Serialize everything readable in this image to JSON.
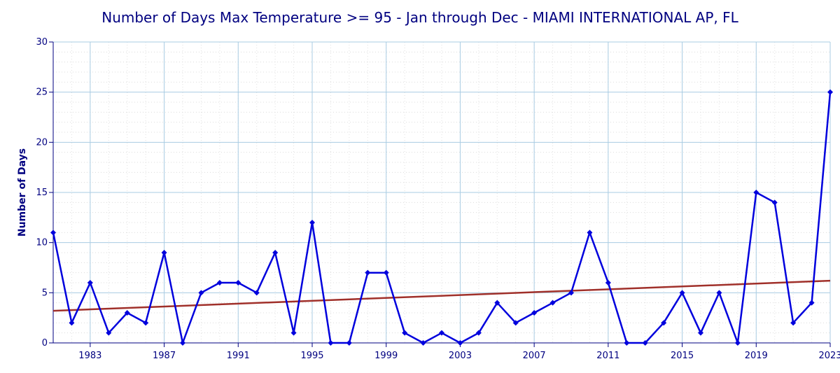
{
  "chart_data": {
    "type": "line",
    "title": "Number of Days Max Temperature >= 95 - Jan through Dec - MIAMI INTERNATIONAL AP, FL",
    "xlabel": "",
    "ylabel": "Number of Days",
    "x": [
      1981,
      1982,
      1983,
      1984,
      1985,
      1986,
      1987,
      1988,
      1989,
      1990,
      1991,
      1992,
      1993,
      1994,
      1995,
      1996,
      1997,
      1998,
      1999,
      2000,
      2001,
      2002,
      2003,
      2004,
      2005,
      2006,
      2007,
      2008,
      2009,
      2010,
      2011,
      2012,
      2013,
      2014,
      2015,
      2016,
      2017,
      2018,
      2019,
      2020,
      2021,
      2022,
      2023
    ],
    "xlim": [
      1981,
      2023
    ],
    "ylim": [
      0,
      30
    ],
    "x_ticks": [
      "1983",
      "1987",
      "1991",
      "1995",
      "1999",
      "2003",
      "2007",
      "2011",
      "2015",
      "2019",
      "2023"
    ],
    "y_ticks": [
      "0",
      "5",
      "10",
      "15",
      "20",
      "25",
      "30"
    ],
    "grid": true,
    "legend": "none",
    "series": [
      {
        "color": "#0000dd",
        "values": [
          11,
          2,
          6,
          1,
          3,
          2,
          9,
          0,
          5,
          6,
          6,
          5,
          9,
          1,
          12,
          0,
          0,
          7,
          7,
          1,
          0,
          1,
          0,
          1,
          4,
          2,
          3,
          4,
          5,
          11,
          6,
          0,
          0,
          2,
          5,
          1,
          5,
          0,
          15,
          14,
          2,
          4,
          25
        ]
      },
      {
        "color": "#a0302a",
        "x": [
          1981,
          2023
        ],
        "values": [
          3.2,
          6.2
        ]
      }
    ]
  }
}
